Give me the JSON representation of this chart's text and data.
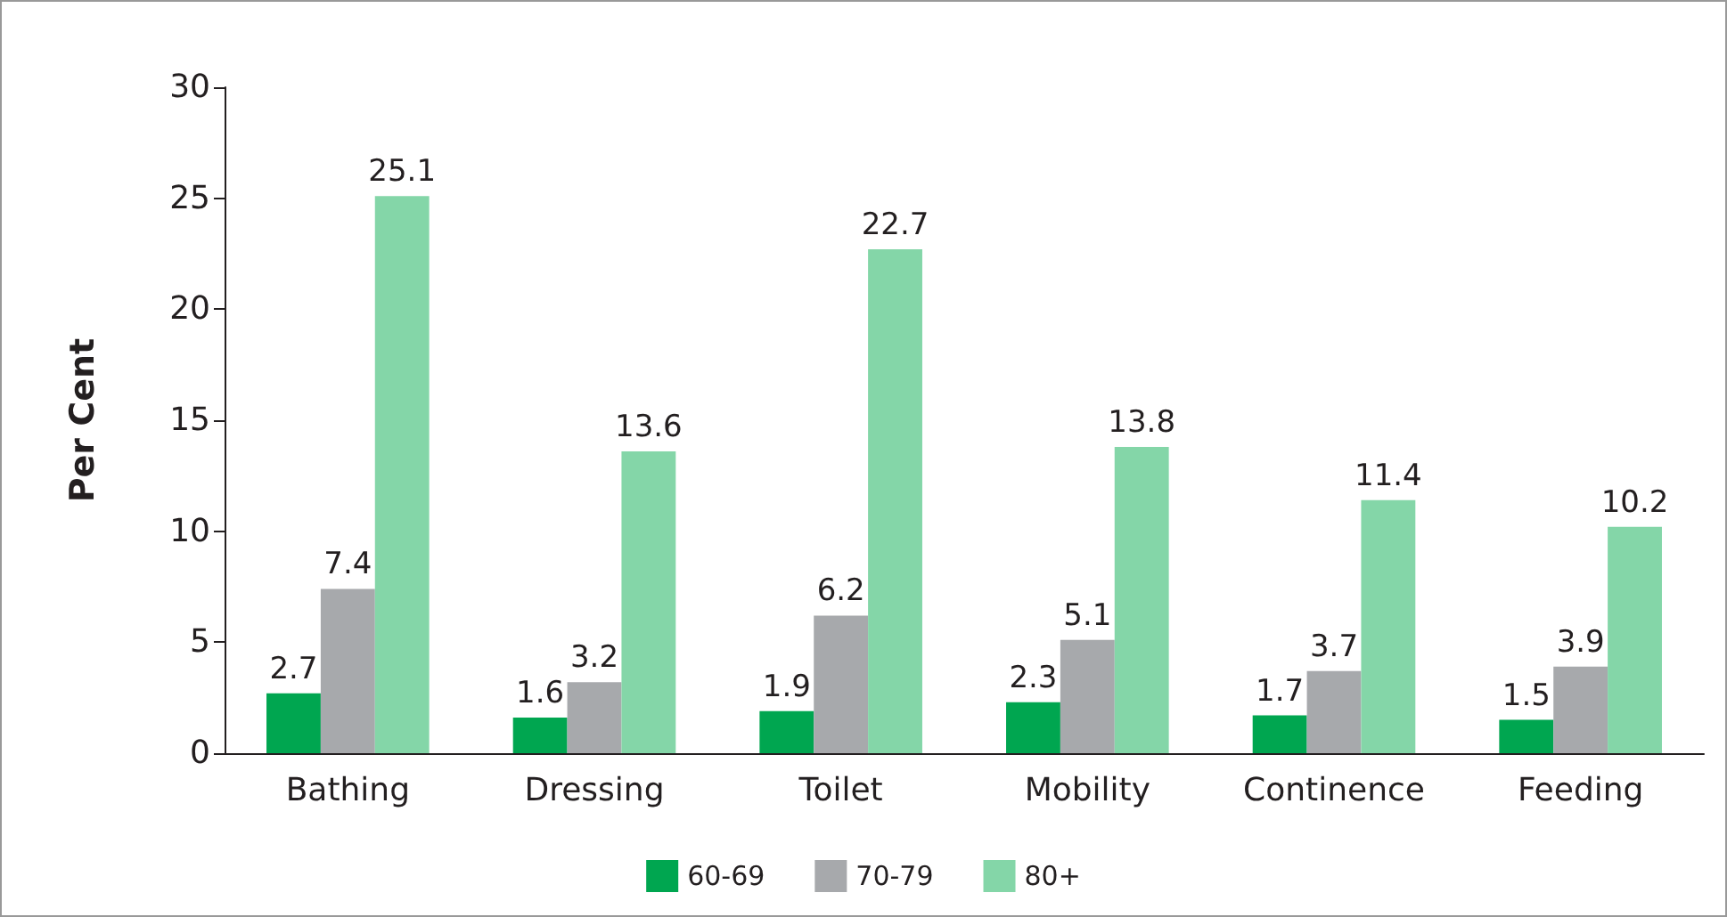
{
  "chart_data": {
    "type": "bar",
    "ylabel": "Per Cent",
    "categories": [
      "Bathing",
      "Dressing",
      "Toilet",
      "Mobility",
      "Continence",
      "Feeding"
    ],
    "series": [
      {
        "name": "60-69",
        "color": "#00a650",
        "values": [
          2.7,
          1.6,
          1.9,
          2.3,
          1.7,
          1.5
        ]
      },
      {
        "name": "70-79",
        "color": "#a7a9ac",
        "values": [
          7.4,
          3.2,
          6.2,
          5.1,
          3.7,
          3.9
        ]
      },
      {
        "name": "80+",
        "color": "#84d6a8",
        "values": [
          25.1,
          13.6,
          22.7,
          13.8,
          11.4,
          10.2
        ]
      }
    ],
    "ylim": [
      0,
      30
    ],
    "yticks": [
      0,
      5,
      10,
      15,
      20,
      25,
      30
    ],
    "data_labels": true,
    "grid": false,
    "legend": "bottom"
  }
}
